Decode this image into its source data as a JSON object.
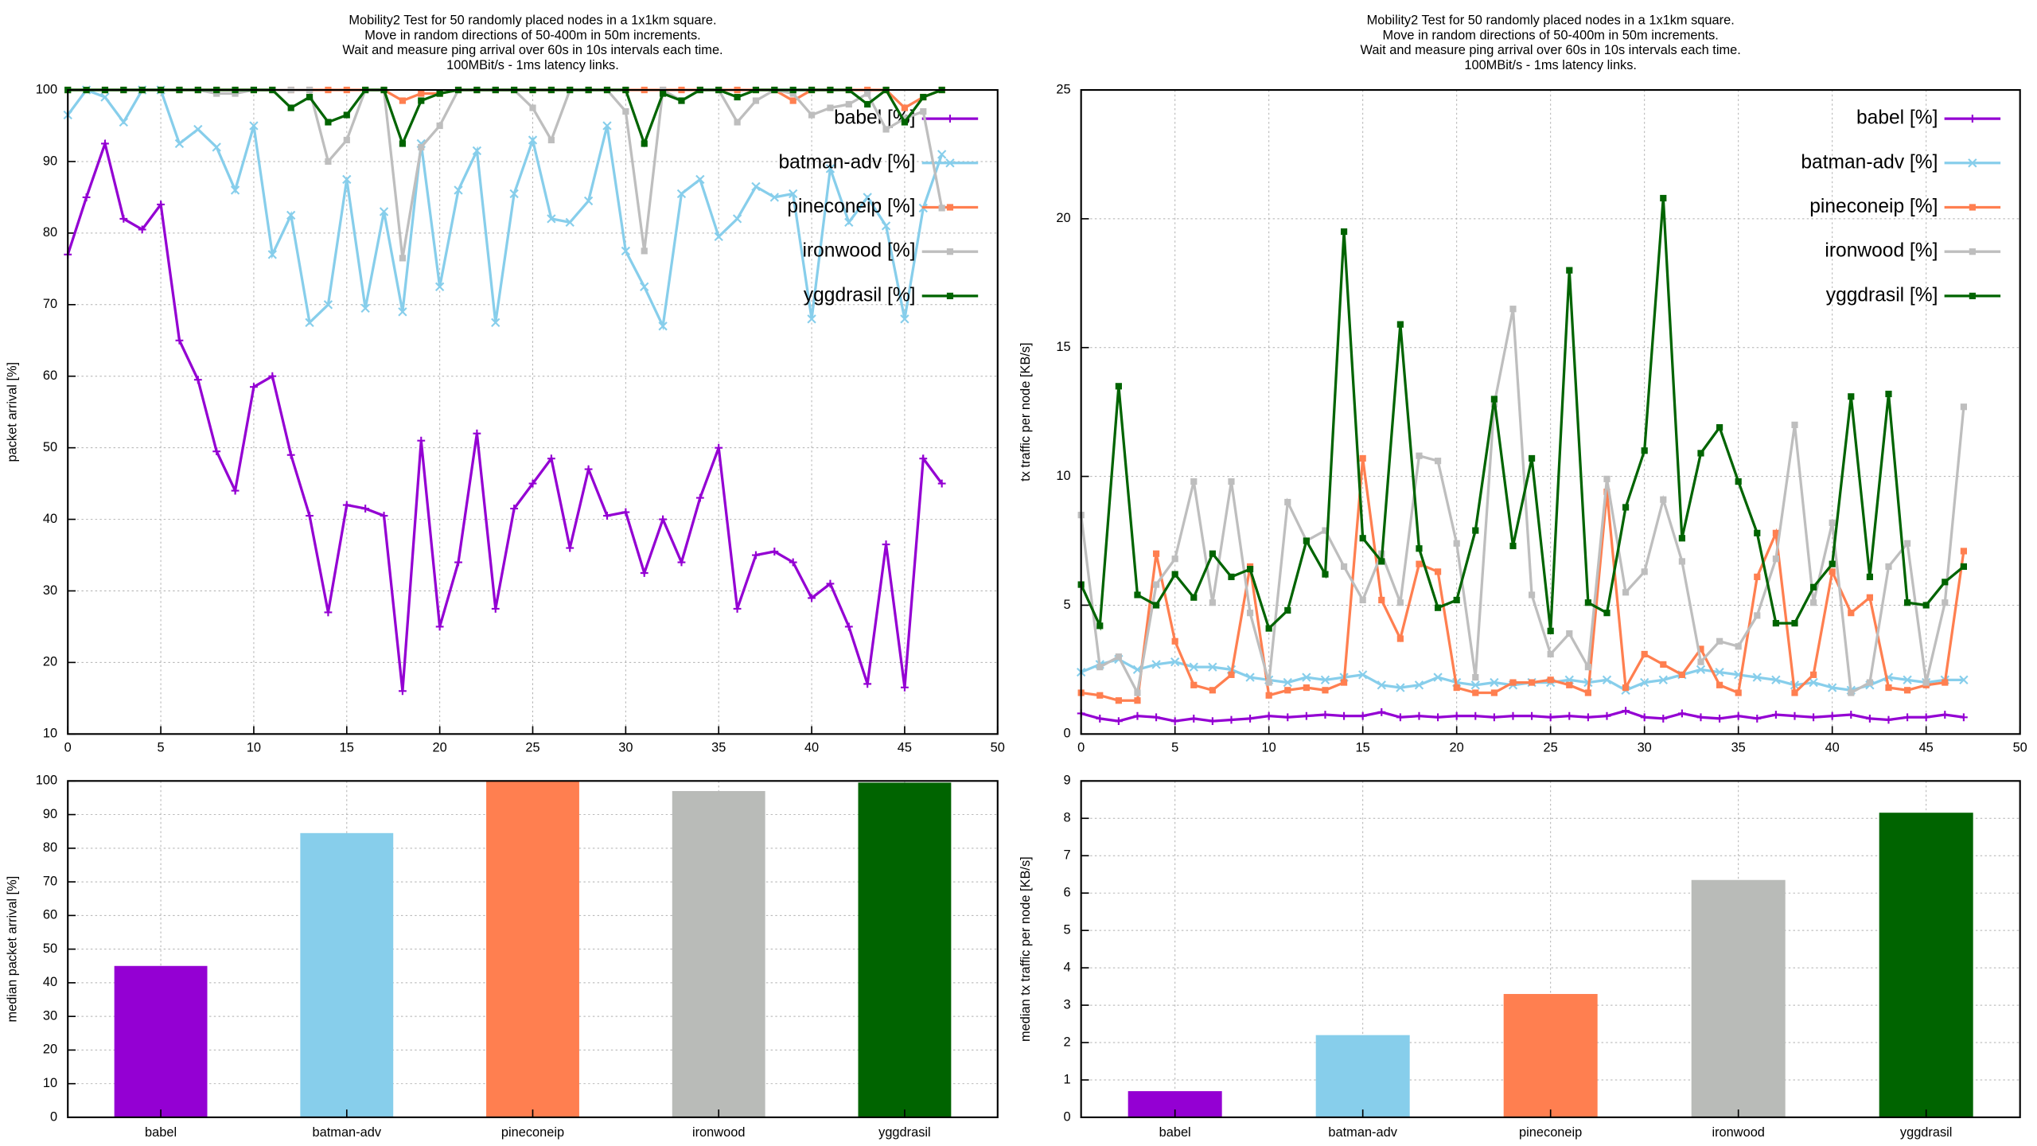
{
  "chart_data": [
    {
      "type": "line",
      "title": [
        "Mobility2 Test for 50 randomly placed nodes in a 1x1km square.",
        "Move in random directions of 50-400m in 50m increments.",
        "Wait and measure ping arrival over 60s in 10s intervals each time.",
        "100MBit/s - 1ms latency links."
      ],
      "ylabel": "packet arrival [%]",
      "xlim": [
        0,
        50
      ],
      "xticks": [
        0,
        5,
        10,
        15,
        20,
        25,
        30,
        35,
        40,
        45,
        50
      ],
      "ylim": [
        10,
        100
      ],
      "yticks": [
        10,
        20,
        30,
        40,
        50,
        60,
        70,
        80,
        90,
        100
      ],
      "grid": true,
      "legend": "top-right",
      "x": [
        0,
        1,
        2,
        3,
        4,
        5,
        6,
        7,
        8,
        9,
        10,
        11,
        12,
        13,
        14,
        15,
        16,
        17,
        18,
        19,
        20,
        21,
        22,
        23,
        24,
        25,
        26,
        27,
        28,
        29,
        30,
        31,
        32,
        33,
        34,
        35,
        36,
        37,
        38,
        39,
        40,
        41,
        42,
        43,
        44,
        45,
        46,
        47
      ],
      "series": [
        {
          "name": "babel [%]",
          "color": "#9400d3",
          "marker": "plus",
          "values": [
            77,
            85,
            92.5,
            82,
            80.5,
            84,
            65,
            59.5,
            49.5,
            44,
            58.5,
            60,
            49,
            40.5,
            27,
            42,
            41.5,
            40.5,
            16,
            51,
            25,
            34,
            52,
            27.5,
            41.5,
            45,
            48.5,
            36,
            47,
            40.5,
            41,
            32.5,
            40,
            34,
            43,
            50,
            27.5,
            35,
            35.5,
            34,
            29,
            31,
            25,
            17,
            36.5,
            16.5,
            48.5,
            45
          ]
        },
        {
          "name": "batman-adv [%]",
          "color": "#87ceeb",
          "marker": "cross",
          "values": [
            96.5,
            100,
            99,
            95.5,
            100,
            100,
            92.5,
            94.5,
            92,
            86,
            95,
            77,
            82.5,
            67.5,
            70,
            87.5,
            69.5,
            83,
            69,
            92.5,
            72.5,
            86,
            91.5,
            67.5,
            85.5,
            93,
            82,
            81.5,
            84.5,
            95,
            77.5,
            72.5,
            67,
            85.5,
            87.5,
            79.5,
            82,
            86.5,
            85,
            85.5,
            68,
            89,
            81.5,
            85,
            81,
            68,
            83.5,
            91
          ]
        },
        {
          "name": "pineconeip [%]",
          "color": "#ff7f50",
          "marker": "square",
          "values": [
            100,
            100,
            100,
            100,
            100,
            100,
            100,
            100,
            100,
            100,
            100,
            100,
            100,
            100,
            100,
            100,
            100,
            100,
            98.5,
            99.5,
            99.5,
            100,
            100,
            100,
            100,
            100,
            100,
            100,
            100,
            100,
            100,
            100,
            100,
            100,
            100,
            100,
            100,
            100,
            100,
            98.5,
            100,
            100,
            100,
            100,
            100,
            97.5,
            99,
            100
          ]
        },
        {
          "name": "ironwood [%]",
          "color": "#bebebe",
          "marker": "square",
          "values": [
            100,
            100,
            100,
            100,
            100,
            100,
            100,
            100,
            99.5,
            99.5,
            100,
            100,
            100,
            100,
            90,
            93,
            100,
            100,
            76.5,
            92,
            95,
            100,
            100,
            100,
            100,
            97.5,
            93,
            100,
            100,
            100,
            97,
            77.5,
            100,
            98.5,
            100,
            100,
            95.5,
            98.5,
            100,
            99.5,
            96.5,
            97.5,
            98,
            99.5,
            94.5,
            96,
            97,
            83.5
          ]
        },
        {
          "name": "yggdrasil [%]",
          "color": "#006400",
          "marker": "square",
          "values": [
            100,
            100,
            100,
            100,
            100,
            100,
            100,
            100,
            100,
            100,
            100,
            100,
            97.5,
            99,
            95.5,
            96.5,
            100,
            100,
            92.5,
            98.5,
            99.5,
            100,
            100,
            100,
            100,
            100,
            100,
            100,
            100,
            100,
            100,
            92.5,
            99.5,
            98.5,
            100,
            100,
            99,
            100,
            100,
            100,
            100,
            100,
            100,
            98,
            100,
            95.5,
            99,
            100
          ]
        }
      ]
    },
    {
      "type": "line",
      "title": [
        "Mobility2 Test for 50 randomly placed nodes in a 1x1km square.",
        "Move in random directions of 50-400m in 50m increments.",
        "Wait and measure ping arrival over 60s in 10s intervals each time.",
        "100MBit/s - 1ms latency links."
      ],
      "ylabel": "tx traffic per node [KB/s]",
      "xlim": [
        0,
        50
      ],
      "xticks": [
        0,
        5,
        10,
        15,
        20,
        25,
        30,
        35,
        40,
        45,
        50
      ],
      "ylim": [
        0,
        25
      ],
      "yticks": [
        0,
        5,
        10,
        15,
        20,
        25
      ],
      "grid": true,
      "legend": "top-right",
      "x": [
        0,
        1,
        2,
        3,
        4,
        5,
        6,
        7,
        8,
        9,
        10,
        11,
        12,
        13,
        14,
        15,
        16,
        17,
        18,
        19,
        20,
        21,
        22,
        23,
        24,
        25,
        26,
        27,
        28,
        29,
        30,
        31,
        32,
        33,
        34,
        35,
        36,
        37,
        38,
        39,
        40,
        41,
        42,
        43,
        44,
        45,
        46,
        47
      ],
      "series": [
        {
          "name": "babel [%]",
          "color": "#9400d3",
          "marker": "plus",
          "values": [
            0.8,
            0.6,
            0.5,
            0.7,
            0.65,
            0.5,
            0.6,
            0.5,
            0.55,
            0.6,
            0.7,
            0.65,
            0.7,
            0.75,
            0.7,
            0.7,
            0.85,
            0.65,
            0.7,
            0.65,
            0.7,
            0.7,
            0.65,
            0.7,
            0.7,
            0.65,
            0.7,
            0.65,
            0.7,
            0.9,
            0.65,
            0.6,
            0.8,
            0.65,
            0.6,
            0.7,
            0.6,
            0.75,
            0.7,
            0.65,
            0.7,
            0.75,
            0.6,
            0.55,
            0.65,
            0.65,
            0.75,
            0.65
          ]
        },
        {
          "name": "batman-adv [%]",
          "color": "#87ceeb",
          "marker": "cross",
          "values": [
            2.4,
            2.7,
            2.9,
            2.5,
            2.7,
            2.8,
            2.6,
            2.6,
            2.5,
            2.2,
            2.1,
            2,
            2.2,
            2.1,
            2.2,
            2.3,
            1.9,
            1.8,
            1.9,
            2.2,
            2,
            1.9,
            2,
            1.9,
            2,
            2,
            2.1,
            2,
            2.1,
            1.7,
            2,
            2.1,
            2.3,
            2.5,
            2.4,
            2.3,
            2.2,
            2.1,
            1.9,
            2,
            1.8,
            1.7,
            1.9,
            2.2,
            2.1,
            2,
            2.1,
            2.1
          ]
        },
        {
          "name": "pineconeip [%]",
          "color": "#ff7f50",
          "marker": "square",
          "values": [
            1.6,
            1.5,
            1.3,
            1.3,
            7,
            3.6,
            1.9,
            1.7,
            2.3,
            6.5,
            1.5,
            1.7,
            1.8,
            1.7,
            2,
            10.7,
            5.2,
            3.7,
            6.6,
            6.3,
            1.8,
            1.6,
            1.6,
            2,
            2,
            2.1,
            1.9,
            1.6,
            9.4,
            1.8,
            3.1,
            2.7,
            2.3,
            3.3,
            1.9,
            1.6,
            6.1,
            7.8,
            1.6,
            2.3,
            6.3,
            4.7,
            5.3,
            1.8,
            1.7,
            1.9,
            2,
            7.1
          ]
        },
        {
          "name": "ironwood [%]",
          "color": "#bebebe",
          "marker": "square",
          "values": [
            8.5,
            2.6,
            3,
            1.6,
            5.8,
            6.8,
            9.8,
            5.1,
            9.8,
            4.7,
            2,
            9,
            7.5,
            7.9,
            6.5,
            5.2,
            7,
            5.1,
            10.8,
            10.6,
            7.4,
            2.2,
            12.8,
            16.5,
            5.4,
            3.1,
            3.9,
            2.6,
            9.9,
            5.5,
            6.3,
            9.1,
            6.7,
            2.8,
            3.6,
            3.4,
            4.6,
            6.8,
            12,
            5.1,
            8.2,
            1.6,
            2,
            6.5,
            7.4,
            2,
            5.1,
            12.7
          ]
        },
        {
          "name": "yggdrasil [%]",
          "color": "#006400",
          "marker": "square",
          "values": [
            5.8,
            4.2,
            13.5,
            5.4,
            5,
            6.2,
            5.3,
            7,
            6.1,
            6.4,
            4.1,
            4.8,
            7.5,
            6.2,
            19.5,
            7.6,
            6.7,
            15.9,
            7.2,
            4.9,
            5.2,
            7.9,
            13,
            7.3,
            10.7,
            4,
            18,
            5.1,
            4.7,
            8.8,
            11,
            20.8,
            7.6,
            10.9,
            11.9,
            9.8,
            7.8,
            4.3,
            4.3,
            5.7,
            6.6,
            13.1,
            6.1,
            13.2,
            5.1,
            5,
            5.9,
            6.5
          ]
        }
      ]
    },
    {
      "type": "bar",
      "ylabel": "median packet arrival [%]",
      "ylim": [
        0,
        100
      ],
      "yticks": [
        0,
        10,
        20,
        30,
        40,
        50,
        60,
        70,
        80,
        90,
        100
      ],
      "grid": true,
      "categories": [
        "babel",
        "batman-adv",
        "pineconeip",
        "ironwood",
        "yggdrasil"
      ],
      "values": [
        45,
        84.5,
        100,
        97,
        99.5
      ],
      "colors": [
        "#9400d3",
        "#87ceeb",
        "#ff7f50",
        "#b9bbb8",
        "#006400"
      ]
    },
    {
      "type": "bar",
      "ylabel": "median tx traffic per node [KB/s]",
      "ylim": [
        0,
        9
      ],
      "yticks": [
        0,
        1,
        2,
        3,
        4,
        5,
        6,
        7,
        8,
        9
      ],
      "grid": true,
      "categories": [
        "babel",
        "batman-adv",
        "pineconeip",
        "ironwood",
        "yggdrasil"
      ],
      "values": [
        0.7,
        2.2,
        3.3,
        6.35,
        8.15
      ],
      "colors": [
        "#9400d3",
        "#87ceeb",
        "#ff7f50",
        "#b9bbb8",
        "#006400"
      ]
    }
  ]
}
